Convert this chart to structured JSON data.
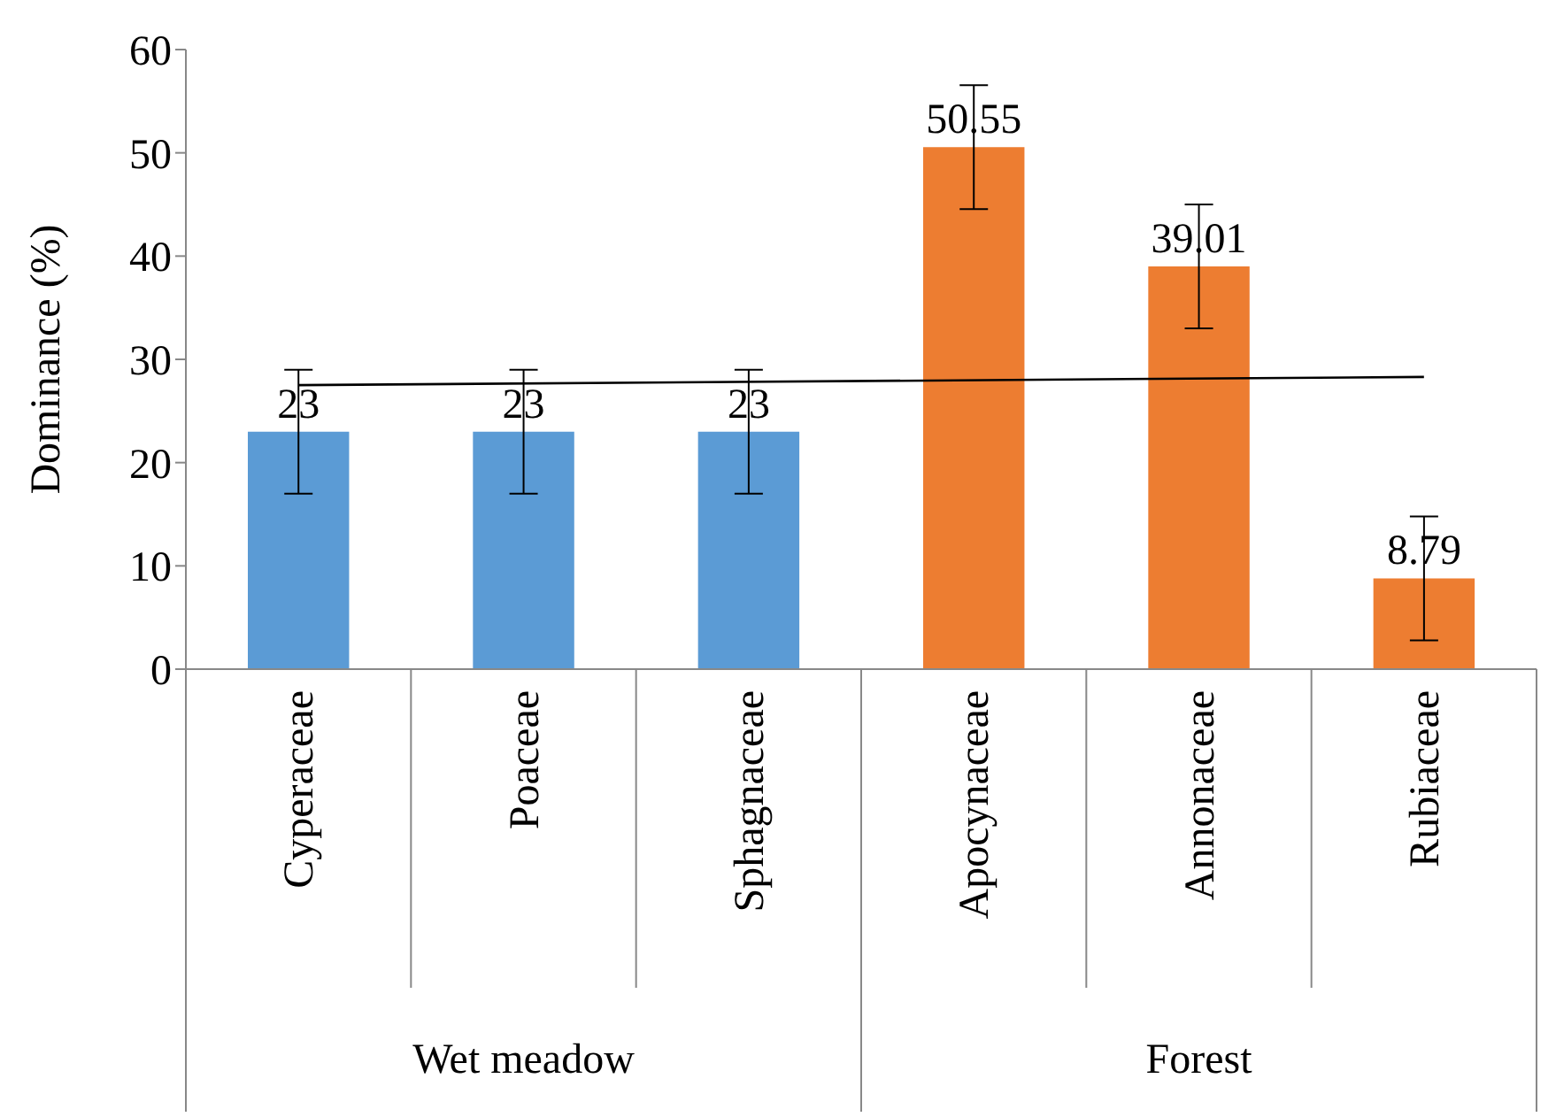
{
  "chart_data": {
    "type": "bar",
    "ylabel": "Dominance (%)",
    "categories": [
      "Cyperaceae",
      "Poaceae",
      "Sphagnaceae",
      "Apocynaceae",
      "Annonaceae",
      "Rubiaceae"
    ],
    "series": [
      {
        "values": [
          23,
          23,
          23,
          50.55,
          39.01,
          8.79
        ],
        "value_labels": [
          "23",
          "23",
          "23",
          "50.55",
          "39.01",
          "8.79"
        ],
        "colors": [
          "#5b9bd5",
          "#5b9bd5",
          "#5b9bd5",
          "#ed7d31",
          "#ed7d31",
          "#ed7d31"
        ],
        "errors": [
          6,
          6,
          6,
          6,
          6,
          6
        ]
      },
      {
        "type": "line",
        "color": "#000000",
        "x": [
          "Cyperaceae",
          "Rubiaceae"
        ],
        "values": [
          27.5,
          28.3
        ]
      }
    ],
    "ylim": [
      0,
      60
    ],
    "yticks": [
      0,
      10,
      20,
      30,
      40,
      50,
      60
    ],
    "grid": false,
    "legend": false,
    "marker": "none",
    "annotations": [
      "Wet meadow",
      "Forest"
    ]
  }
}
